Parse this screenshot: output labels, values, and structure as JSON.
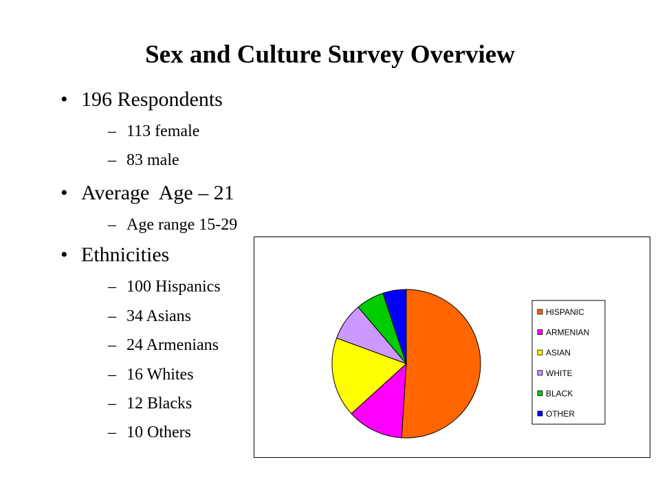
{
  "slide": {
    "title": "Sex and Culture Survey Overview",
    "bullets": [
      {
        "text": "196 Respondents",
        "subs": [
          "113 female",
          "83 male"
        ]
      },
      {
        "text": "Average  Age – 21",
        "subs": [
          "Age range 15-29"
        ]
      },
      {
        "text": "Ethnicities",
        "subs": [
          "100 Hispanics",
          "34 Asians",
          "24 Armenians",
          "16 Whites",
          "12 Blacks",
          "10 Others"
        ]
      }
    ],
    "bullet_glyph": "•",
    "dash_glyph": "–"
  },
  "chart_data": {
    "type": "pie",
    "title": "",
    "legend_position": "right",
    "series": [
      {
        "name": "HISPANIC",
        "value": 100,
        "color": "#ff6600"
      },
      {
        "name": "ARMENIAN",
        "value": 24,
        "color": "#ff00ff"
      },
      {
        "name": "ASIAN",
        "value": 34,
        "color": "#ffff00"
      },
      {
        "name": "WHITE",
        "value": 16,
        "color": "#cc99ff"
      },
      {
        "name": "BLACK",
        "value": 12,
        "color": "#00cc00"
      },
      {
        "name": "OTHER",
        "value": 10,
        "color": "#0000ff"
      }
    ]
  }
}
